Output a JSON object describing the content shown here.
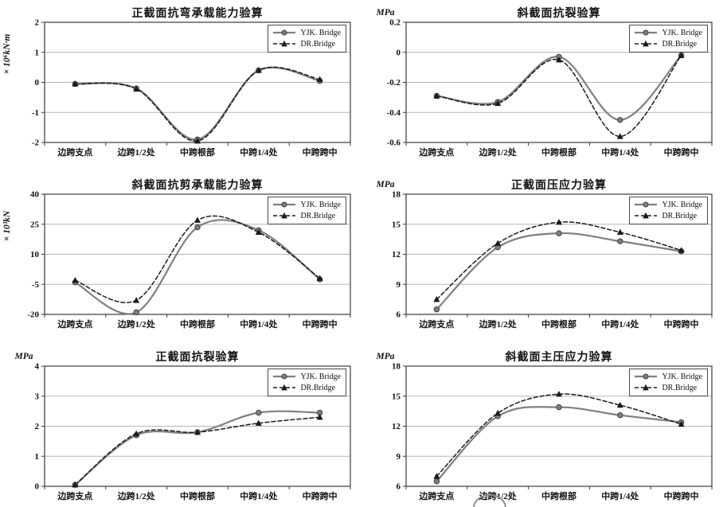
{
  "page": {
    "background": "#ffffff"
  },
  "series_styles": [
    {
      "name": "YJK. Bridge",
      "color": "#7f7f7f",
      "marker": "circle",
      "dash": "",
      "width": 2.2
    },
    {
      "name": "DR.Bridge",
      "color": "#1a1a1a",
      "marker": "triangle",
      "dash": "5,3",
      "width": 1.5
    }
  ],
  "chart_data": [
    {
      "type": "line",
      "title": "正截面抗弯承载能力验算",
      "unit": "× 10⁶kN·m",
      "unit_orientation": "vertical",
      "ylim": [
        -2,
        2
      ],
      "yticks": [
        2,
        1,
        0,
        -1,
        -2
      ],
      "grid": true,
      "legend_position": "top-right",
      "categories": [
        "边跨支点",
        "边跨1/2处",
        "中跨根部",
        "中跨1/4处",
        "中跨跨中"
      ],
      "series": [
        {
          "name": "YJK. Bridge",
          "values": [
            -0.05,
            -0.2,
            -1.9,
            0.4,
            0.05
          ]
        },
        {
          "name": "DR.Bridge",
          "values": [
            -0.05,
            -0.22,
            -1.95,
            0.4,
            0.1
          ]
        }
      ]
    },
    {
      "type": "line",
      "title": "斜截面抗裂验算",
      "unit": "MPa",
      "unit_orientation": "horizontal",
      "ylim": [
        -0.6,
        0.2
      ],
      "yticks": [
        0.2,
        0,
        -0.2,
        -0.4,
        -0.6
      ],
      "grid": true,
      "legend_position": "top-right",
      "categories": [
        "边跨支点",
        "边跨1/2处",
        "中跨根部",
        "中跨1/4处",
        "中跨跨中"
      ],
      "series": [
        {
          "name": "YJK. Bridge",
          "values": [
            -0.29,
            -0.33,
            -0.03,
            -0.45,
            -0.02
          ]
        },
        {
          "name": "DR.Bridge",
          "values": [
            -0.29,
            -0.34,
            -0.05,
            -0.56,
            -0.02
          ]
        }
      ]
    },
    {
      "type": "line",
      "title": "斜截面抗剪承载能力验算",
      "unit": "× 10³kN",
      "unit_orientation": "vertical",
      "ylim": [
        -20,
        40
      ],
      "yticks": [
        40,
        25,
        10,
        -5,
        -20
      ],
      "grid": true,
      "legend_position": "top-right",
      "categories": [
        "边跨支点",
        "边跨1/2处",
        "中跨根部",
        "中跨1/4处",
        "中跨跨中"
      ],
      "series": [
        {
          "name": "YJK. Bridge",
          "values": [
            -4,
            -19,
            23.5,
            22,
            -2.5
          ]
        },
        {
          "name": "DR.Bridge",
          "values": [
            -3,
            -13,
            27,
            21,
            -2
          ]
        }
      ]
    },
    {
      "type": "line",
      "title": "正截面压应力验算",
      "unit": "MPa",
      "unit_orientation": "horizontal",
      "ylim": [
        6,
        18
      ],
      "yticks": [
        18,
        15,
        12,
        9,
        6
      ],
      "grid": true,
      "legend_position": "top-right",
      "categories": [
        "边跨支点",
        "边跨1/2处",
        "中跨根部",
        "中跨1/4处",
        "中跨跨中"
      ],
      "series": [
        {
          "name": "YJK. Bridge",
          "values": [
            6.5,
            12.7,
            14.1,
            13.3,
            12.3
          ]
        },
        {
          "name": "DR.Bridge",
          "values": [
            7.5,
            13.1,
            15.2,
            14.2,
            12.4
          ]
        }
      ]
    },
    {
      "type": "line",
      "title": "正截面抗裂验算",
      "unit": "MPa",
      "unit_orientation": "horizontal",
      "ylim": [
        0,
        4
      ],
      "yticks": [
        4,
        3,
        2,
        1,
        0
      ],
      "grid": true,
      "legend_position": "top-right",
      "categories": [
        "边跨支点",
        "边跨1/2处",
        "中跨根部",
        "中跨1/4处",
        "中跨跨中"
      ],
      "series": [
        {
          "name": "YJK. Bridge",
          "values": [
            0.05,
            1.7,
            1.8,
            2.45,
            2.45
          ]
        },
        {
          "name": "DR.Bridge",
          "values": [
            0.05,
            1.75,
            1.8,
            2.1,
            2.3
          ]
        }
      ]
    },
    {
      "type": "line",
      "title": "斜截面主压应力验算",
      "unit": "MPa",
      "unit_orientation": "horizontal",
      "ylim": [
        6,
        18
      ],
      "yticks": [
        18,
        15,
        12,
        9,
        6
      ],
      "grid": true,
      "legend_position": "top-right",
      "categories": [
        "边跨支点",
        "边跨1/2处",
        "中跨根部",
        "中跨1/4处",
        "中跨跨中"
      ],
      "series": [
        {
          "name": "YJK. Bridge",
          "values": [
            6.5,
            13,
            13.9,
            13.1,
            12.4
          ]
        },
        {
          "name": "DR.Bridge",
          "values": [
            7,
            13.3,
            15.2,
            14.1,
            12.2
          ]
        }
      ]
    }
  ]
}
